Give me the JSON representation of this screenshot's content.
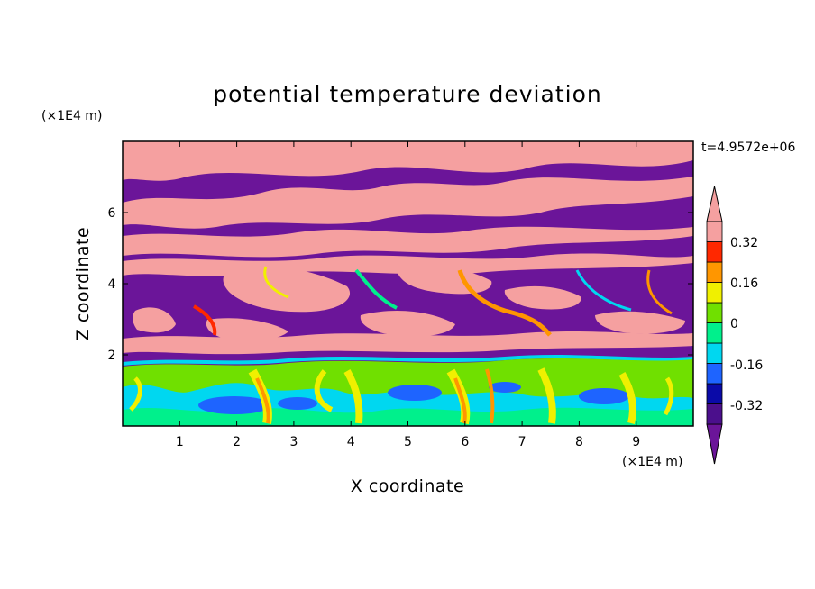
{
  "chart_data": {
    "type": "heatmap",
    "title": "potential temperature deviation",
    "xlabel": "X coordinate",
    "ylabel": "Z coordinate",
    "x_scale_label": "(×1E4 m)",
    "z_scale_label": "(×1E4 m)",
    "time_label": "t=4.9572e+06",
    "xlim": [
      0,
      10
    ],
    "ylim": [
      0,
      8
    ],
    "x_ticks": [
      "1",
      "2",
      "3",
      "4",
      "5",
      "6",
      "7",
      "8",
      "9"
    ],
    "y_ticks": [
      "2",
      "4",
      "6"
    ],
    "colorbar": {
      "labels": [
        "0.32",
        "0.16",
        "0",
        "-0.16",
        "-0.32"
      ],
      "levels": [
        -0.4,
        -0.32,
        -0.24,
        -0.16,
        -0.08,
        0,
        0.08,
        0.16,
        0.24,
        0.32,
        0.4
      ],
      "colors": [
        "#4b0f8c",
        "#0a0aa8",
        "#1e64ff",
        "#00d7f0",
        "#00f08c",
        "#70e000",
        "#f0f000",
        "#ff9600",
        "#ff2800",
        "#f5a0a0"
      ],
      "under_color": "#6b1599",
      "over_color": "#f5a0a0",
      "extend": "both"
    }
  }
}
